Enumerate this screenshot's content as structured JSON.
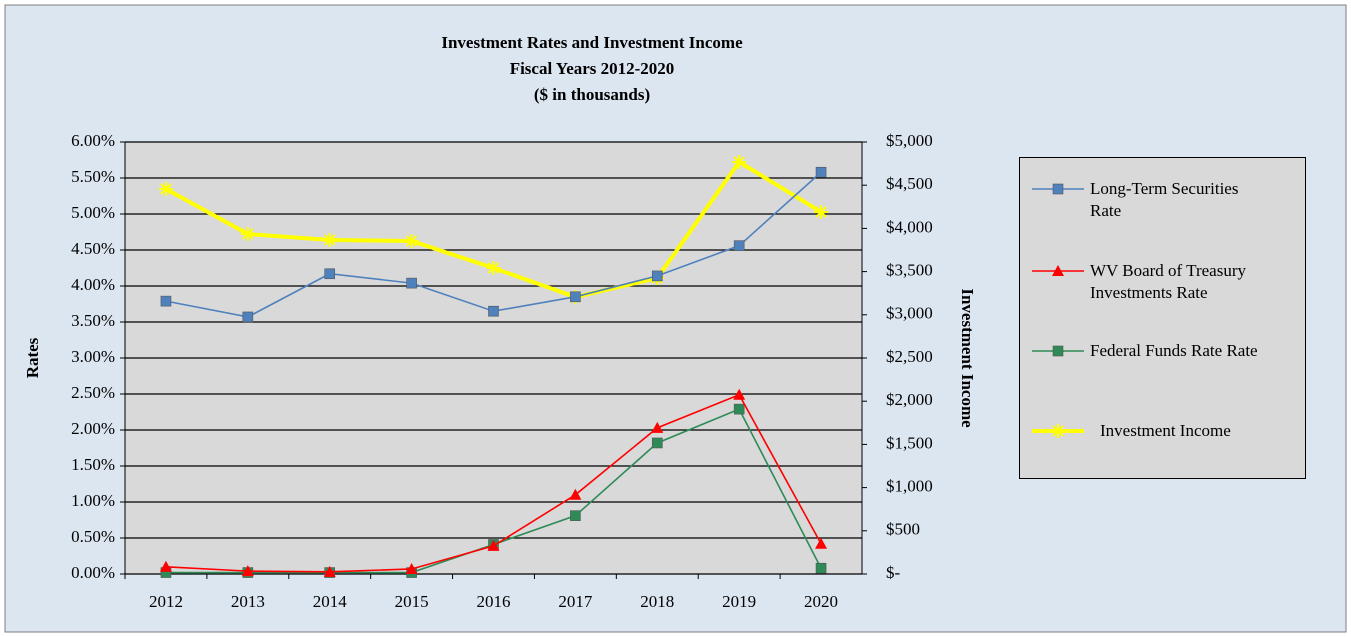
{
  "chart_data": {
    "type": "line",
    "title": "Investment  Rates and Investment  Income",
    "subtitles": [
      "Fiscal Years 2012-2020",
      "($ in thousands)"
    ],
    "ylabel": "Rates",
    "y2label": "Investment  Income",
    "categories": [
      "2012",
      "2013",
      "2014",
      "2015",
      "2016",
      "2017",
      "2018",
      "2019",
      "2020"
    ],
    "series": [
      {
        "name": "Long-Term Securities Rate",
        "color": "#4f81bd",
        "marker": "square",
        "values": [
          3.79,
          3.57,
          4.17,
          4.04,
          3.65,
          3.85,
          4.14,
          4.56,
          5.58
        ]
      },
      {
        "name": "WV Board of Treasury Investments Rate",
        "color": "#ff0000",
        "marker": "triangle",
        "values": [
          0.1,
          0.04,
          0.03,
          0.07,
          0.39,
          1.1,
          2.03,
          2.49,
          0.42
        ]
      },
      {
        "name": "Federal Funds Rate Rate",
        "color": "#2e8b57",
        "marker": "square",
        "values": [
          0.02,
          0.02,
          0.02,
          0.02,
          0.41,
          0.81,
          1.82,
          2.29,
          0.08
        ]
      },
      {
        "name": "Investment  Income",
        "color": "#ffff00",
        "marker": "star",
        "axis": "y2",
        "values": [
          4456,
          3935,
          3866,
          3854,
          3542,
          3206,
          3426,
          4769,
          4190
        ]
      }
    ],
    "ylim": [
      0,
      6
    ],
    "yticks": [
      {
        "value": 0,
        "label": "0.00%"
      },
      {
        "value": 0.5,
        "label": "0.50%"
      },
      {
        "value": 1,
        "label": "1.00%"
      },
      {
        "value": 1.5,
        "label": "1.50%"
      },
      {
        "value": 2,
        "label": "2.00%"
      },
      {
        "value": 2.5,
        "label": "2.50%"
      },
      {
        "value": 3,
        "label": "3.00%"
      },
      {
        "value": 3.5,
        "label": "3.50%"
      },
      {
        "value": 4,
        "label": "4.00%"
      },
      {
        "value": 4.5,
        "label": "4.50%"
      },
      {
        "value": 5,
        "label": "5.00%"
      },
      {
        "value": 5.5,
        "label": "5.50%"
      },
      {
        "value": 6,
        "label": "6.00%"
      }
    ],
    "y2lim": [
      0,
      5000
    ],
    "y2ticks": [
      {
        "value": 0,
        "label": "$-"
      },
      {
        "value": 500,
        "label": "$500"
      },
      {
        "value": 1000,
        "label": "$1,000"
      },
      {
        "value": 1500,
        "label": "$1,500"
      },
      {
        "value": 2000,
        "label": "$2,000"
      },
      {
        "value": 2500,
        "label": "$2,500"
      },
      {
        "value": 3000,
        "label": "$3,000"
      },
      {
        "value": 3500,
        "label": "$3,500"
      },
      {
        "value": 4000,
        "label": "$4,000"
      },
      {
        "value": 4500,
        "label": "$4,500"
      },
      {
        "value": 5000,
        "label": "$5,000"
      }
    ],
    "grid": true,
    "legend": "right"
  }
}
